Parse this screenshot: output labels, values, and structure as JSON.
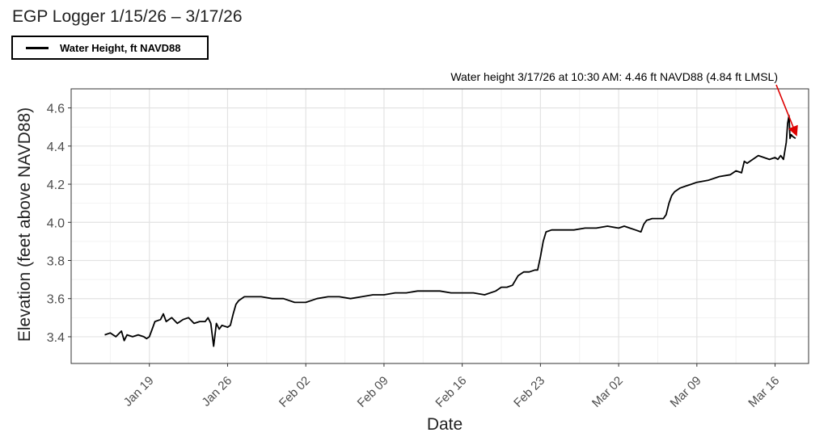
{
  "chart_data": {
    "type": "line",
    "title": "EGP Logger 1/15/26 – 3/17/26",
    "xlabel": "Date",
    "ylabel": "Elevation (feet above NAVD88)",
    "legend": {
      "position": "top-left",
      "entries": [
        "Water Height, ft NAVD88"
      ]
    },
    "grid": true,
    "xlim": [
      "2026-01-12",
      "2026-03-19"
    ],
    "ylim": [
      3.26,
      4.7
    ],
    "x_ticks": [
      {
        "date": "2026-01-19",
        "label": "Jan 19"
      },
      {
        "date": "2026-01-26",
        "label": "Jan 26"
      },
      {
        "date": "2026-02-02",
        "label": "Feb 02"
      },
      {
        "date": "2026-02-09",
        "label": "Feb 09"
      },
      {
        "date": "2026-02-16",
        "label": "Feb 16"
      },
      {
        "date": "2026-02-23",
        "label": "Feb 23"
      },
      {
        "date": "2026-03-02",
        "label": "Mar 02"
      },
      {
        "date": "2026-03-09",
        "label": "Mar 09"
      },
      {
        "date": "2026-03-16",
        "label": "Mar 16"
      }
    ],
    "y_ticks": [
      3.4,
      3.6,
      3.8,
      4.0,
      4.2,
      4.4,
      4.6
    ],
    "series": [
      {
        "name": "Water Height, ft NAVD88",
        "color": "#000000",
        "points": [
          [
            "2026-01-15",
            3.41
          ],
          [
            "2026-01-15T12:00",
            3.42
          ],
          [
            "2026-01-16",
            3.4
          ],
          [
            "2026-01-16T12:00",
            3.43
          ],
          [
            "2026-01-16T18:00",
            3.38
          ],
          [
            "2026-01-17",
            3.41
          ],
          [
            "2026-01-17T12:00",
            3.4
          ],
          [
            "2026-01-18",
            3.41
          ],
          [
            "2026-01-18T12:00",
            3.4
          ],
          [
            "2026-01-18T18:00",
            3.39
          ],
          [
            "2026-01-19",
            3.4
          ],
          [
            "2026-01-19T06:00",
            3.44
          ],
          [
            "2026-01-19T12:00",
            3.48
          ],
          [
            "2026-01-20",
            3.49
          ],
          [
            "2026-01-20T06:00",
            3.52
          ],
          [
            "2026-01-20T12:00",
            3.48
          ],
          [
            "2026-01-21",
            3.5
          ],
          [
            "2026-01-21T12:00",
            3.47
          ],
          [
            "2026-01-22",
            3.49
          ],
          [
            "2026-01-22T12:00",
            3.5
          ],
          [
            "2026-01-23",
            3.47
          ],
          [
            "2026-01-23T12:00",
            3.48
          ],
          [
            "2026-01-24",
            3.48
          ],
          [
            "2026-01-24T06:00",
            3.5
          ],
          [
            "2026-01-24T12:00",
            3.47
          ],
          [
            "2026-01-24T18:00",
            3.35
          ],
          [
            "2026-01-25",
            3.47
          ],
          [
            "2026-01-25T06:00",
            3.44
          ],
          [
            "2026-01-25T12:00",
            3.46
          ],
          [
            "2026-01-26",
            3.45
          ],
          [
            "2026-01-26T06:00",
            3.46
          ],
          [
            "2026-01-26T12:00",
            3.52
          ],
          [
            "2026-01-26T18:00",
            3.57
          ],
          [
            "2026-01-27",
            3.59
          ],
          [
            "2026-01-27T12:00",
            3.61
          ],
          [
            "2026-01-28",
            3.61
          ],
          [
            "2026-01-29",
            3.61
          ],
          [
            "2026-01-30",
            3.6
          ],
          [
            "2026-01-31",
            3.6
          ],
          [
            "2026-02-01",
            3.58
          ],
          [
            "2026-02-02",
            3.58
          ],
          [
            "2026-02-03",
            3.6
          ],
          [
            "2026-02-04",
            3.61
          ],
          [
            "2026-02-05",
            3.61
          ],
          [
            "2026-02-06",
            3.6
          ],
          [
            "2026-02-07",
            3.61
          ],
          [
            "2026-02-08",
            3.62
          ],
          [
            "2026-02-09",
            3.62
          ],
          [
            "2026-02-10",
            3.63
          ],
          [
            "2026-02-11",
            3.63
          ],
          [
            "2026-02-12",
            3.64
          ],
          [
            "2026-02-13",
            3.64
          ],
          [
            "2026-02-14",
            3.64
          ],
          [
            "2026-02-15",
            3.63
          ],
          [
            "2026-02-16",
            3.63
          ],
          [
            "2026-02-17",
            3.63
          ],
          [
            "2026-02-18",
            3.62
          ],
          [
            "2026-02-19",
            3.64
          ],
          [
            "2026-02-19T12:00",
            3.66
          ],
          [
            "2026-02-20",
            3.66
          ],
          [
            "2026-02-20T12:00",
            3.67
          ],
          [
            "2026-02-21",
            3.72
          ],
          [
            "2026-02-21T12:00",
            3.74
          ],
          [
            "2026-02-22",
            3.74
          ],
          [
            "2026-02-22T12:00",
            3.75
          ],
          [
            "2026-02-22T18:00",
            3.75
          ],
          [
            "2026-02-23",
            3.82
          ],
          [
            "2026-02-23T06:00",
            3.9
          ],
          [
            "2026-02-23T12:00",
            3.95
          ],
          [
            "2026-02-24",
            3.96
          ],
          [
            "2026-02-25",
            3.96
          ],
          [
            "2026-02-26",
            3.96
          ],
          [
            "2026-02-27",
            3.97
          ],
          [
            "2026-02-28",
            3.97
          ],
          [
            "2026-03-01",
            3.98
          ],
          [
            "2026-03-02",
            3.97
          ],
          [
            "2026-03-02T12:00",
            3.98
          ],
          [
            "2026-03-03",
            3.97
          ],
          [
            "2026-03-03T12:00",
            3.96
          ],
          [
            "2026-03-04",
            3.95
          ],
          [
            "2026-03-04T06:00",
            3.99
          ],
          [
            "2026-03-04T12:00",
            4.01
          ],
          [
            "2026-03-05",
            4.02
          ],
          [
            "2026-03-06",
            4.02
          ],
          [
            "2026-03-06T06:00",
            4.04
          ],
          [
            "2026-03-06T12:00",
            4.1
          ],
          [
            "2026-03-06T18:00",
            4.14
          ],
          [
            "2026-03-07",
            4.16
          ],
          [
            "2026-03-07T12:00",
            4.18
          ],
          [
            "2026-03-08",
            4.19
          ],
          [
            "2026-03-08T12:00",
            4.2
          ],
          [
            "2026-03-09",
            4.21
          ],
          [
            "2026-03-10",
            4.22
          ],
          [
            "2026-03-11",
            4.24
          ],
          [
            "2026-03-12",
            4.25
          ],
          [
            "2026-03-12T12:00",
            4.27
          ],
          [
            "2026-03-13",
            4.26
          ],
          [
            "2026-03-13T06:00",
            4.32
          ],
          [
            "2026-03-13T12:00",
            4.31
          ],
          [
            "2026-03-14",
            4.33
          ],
          [
            "2026-03-14T12:00",
            4.35
          ],
          [
            "2026-03-15",
            4.34
          ],
          [
            "2026-03-15T12:00",
            4.33
          ],
          [
            "2026-03-16",
            4.34
          ],
          [
            "2026-03-16T06:00",
            4.33
          ],
          [
            "2026-03-16T12:00",
            4.35
          ],
          [
            "2026-03-16T18:00",
            4.33
          ],
          [
            "2026-03-17",
            4.42
          ],
          [
            "2026-03-17T03:00",
            4.52
          ],
          [
            "2026-03-17T06:00",
            4.56
          ],
          [
            "2026-03-17T08:00",
            4.44
          ],
          [
            "2026-03-17T10:30",
            4.46
          ],
          [
            "2026-03-17T14:00",
            4.45
          ],
          [
            "2026-03-17T20:00",
            4.44
          ]
        ]
      }
    ],
    "annotations": [
      {
        "text": "Water height 3/17/26 at 10:30 AM: 4.46 ft NAVD88 (4.84 ft LMSL)",
        "target": [
          "2026-03-17T22:00",
          4.44
        ],
        "arrow_color": "#dd0000"
      }
    ]
  }
}
